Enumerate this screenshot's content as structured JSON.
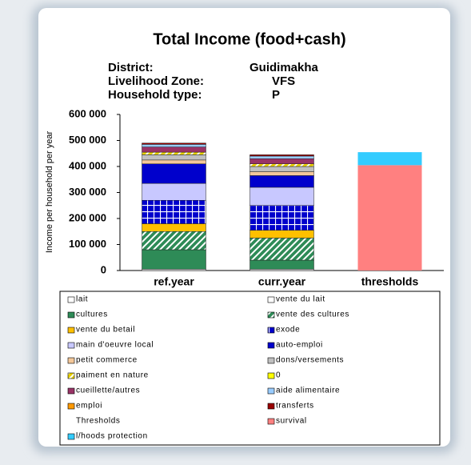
{
  "chart_data": {
    "type": "stacked_bar",
    "title": "Total Income (food+cash)",
    "info": [
      {
        "label": "District:",
        "value": "Guidimakha"
      },
      {
        "label": "Livelihood Zone:",
        "value": "VFS"
      },
      {
        "label": "Household type:",
        "value": "P"
      }
    ],
    "ylabel": "Income per household per year",
    "categories": [
      "ref.year",
      "curr.year",
      "thresholds"
    ],
    "ylim": [
      0,
      600000
    ],
    "yticks": [
      {
        "value": 0,
        "label": "0"
      },
      {
        "value": 100000,
        "label": "100 000"
      },
      {
        "value": 200000,
        "label": "200 000"
      },
      {
        "value": 300000,
        "label": "300 000"
      },
      {
        "value": 400000,
        "label": "400 000"
      },
      {
        "value": 500000,
        "label": "500 000"
      },
      {
        "value": 600000,
        "label": "600 000"
      }
    ],
    "series": [
      {
        "name": "lait",
        "color": "#ffffff",
        "values": [
          5000,
          5000,
          null
        ]
      },
      {
        "name": "vente du lait",
        "color": "#ffffff",
        "values": [
          null,
          null,
          null
        ]
      },
      {
        "name": "cultures",
        "color": "#2e8b57",
        "values": [
          75000,
          35000,
          null
        ]
      },
      {
        "name": "vente des cultures",
        "color": "#2e8b57",
        "pattern": "diagonal",
        "values": [
          70000,
          85000,
          null
        ]
      },
      {
        "name": "vente du betail",
        "color": "#ffc000",
        "values": [
          30000,
          30000,
          null
        ]
      },
      {
        "name": "exode",
        "color": "#0000cc",
        "pattern": "grid",
        "values": [
          90000,
          95000,
          null
        ]
      },
      {
        "name": "main d'oeuvre local",
        "color": "#c8c8ff",
        "values": [
          65000,
          70000,
          null
        ]
      },
      {
        "name": "auto-emploi",
        "color": "#0000cc",
        "values": [
          75000,
          45000,
          null
        ]
      },
      {
        "name": "petit commerce",
        "color": "#f4c89a",
        "values": [
          15000,
          15000,
          null
        ]
      },
      {
        "name": "dons/versements",
        "color": "#c0c0c0",
        "values": [
          20000,
          20000,
          null
        ]
      },
      {
        "name": "paiment en nature",
        "color": "#e8d000",
        "pattern": "diagonal",
        "values": [
          10000,
          10000,
          null
        ]
      },
      {
        "name": "0",
        "color": "#ffff00",
        "values": [
          null,
          null,
          null
        ]
      },
      {
        "name": "cueillette/autres",
        "color": "#993366",
        "values": [
          20000,
          20000,
          null
        ]
      },
      {
        "name": "aide alimentaire",
        "color": "#99ccff",
        "values": [
          10000,
          10000,
          null
        ]
      },
      {
        "name": "emploi",
        "color": "#ff9900",
        "values": [
          null,
          null,
          null
        ]
      },
      {
        "name": "transferts",
        "color": "#990000",
        "values": [
          5000,
          5000,
          null
        ]
      },
      {
        "name": "Thresholds",
        "color": null,
        "values": [
          null,
          null,
          null
        ]
      },
      {
        "name": "survival",
        "color": "#ff8080",
        "values": [
          null,
          null,
          405000
        ]
      },
      {
        "name": "l/hoods protection",
        "color": "#33ccff",
        "values": [
          null,
          null,
          50000
        ]
      }
    ]
  }
}
